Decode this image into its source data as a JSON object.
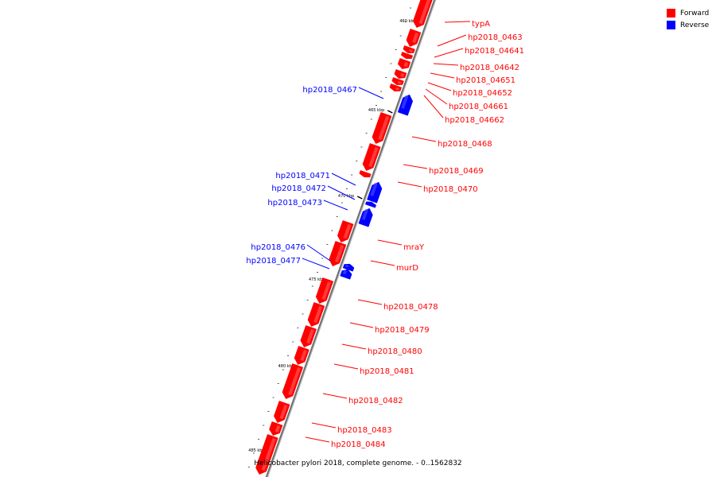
{
  "legend": [
    {
      "label": "Forward",
      "color": "#ff0000"
    },
    {
      "label": "Reverse",
      "color": "#0000ff"
    }
  ],
  "caption": "Helicobacter pylori 2018, complete genome. - 0..1562832",
  "colors": {
    "forward": "#ff0000",
    "reverse": "#0000ff",
    "axis": "#888888"
  },
  "scale_marks": [
    "460 kbp",
    "465 kbp",
    "470 kbp",
    "475 kbp",
    "480 kbp",
    "485 kbp"
  ],
  "forward_genes": [
    "typA",
    "hp2018_0463",
    "hp2018_04641",
    "hp2018_04642",
    "hp2018_04651",
    "hp2018_04652",
    "hp2018_04661",
    "hp2018_04662",
    "hp2018_0468",
    "hp2018_0469",
    "hp2018_0470",
    "mraY",
    "murD",
    "hp2018_0478",
    "hp2018_0479",
    "hp2018_0480",
    "hp2018_0481",
    "hp2018_0482",
    "hp2018_0483",
    "hp2018_0484"
  ],
  "reverse_genes": [
    "hp2018_0467",
    "hp2018_0471",
    "hp2018_0472",
    "hp2018_0473",
    "hp2018_0476",
    "hp2018_0477"
  ]
}
